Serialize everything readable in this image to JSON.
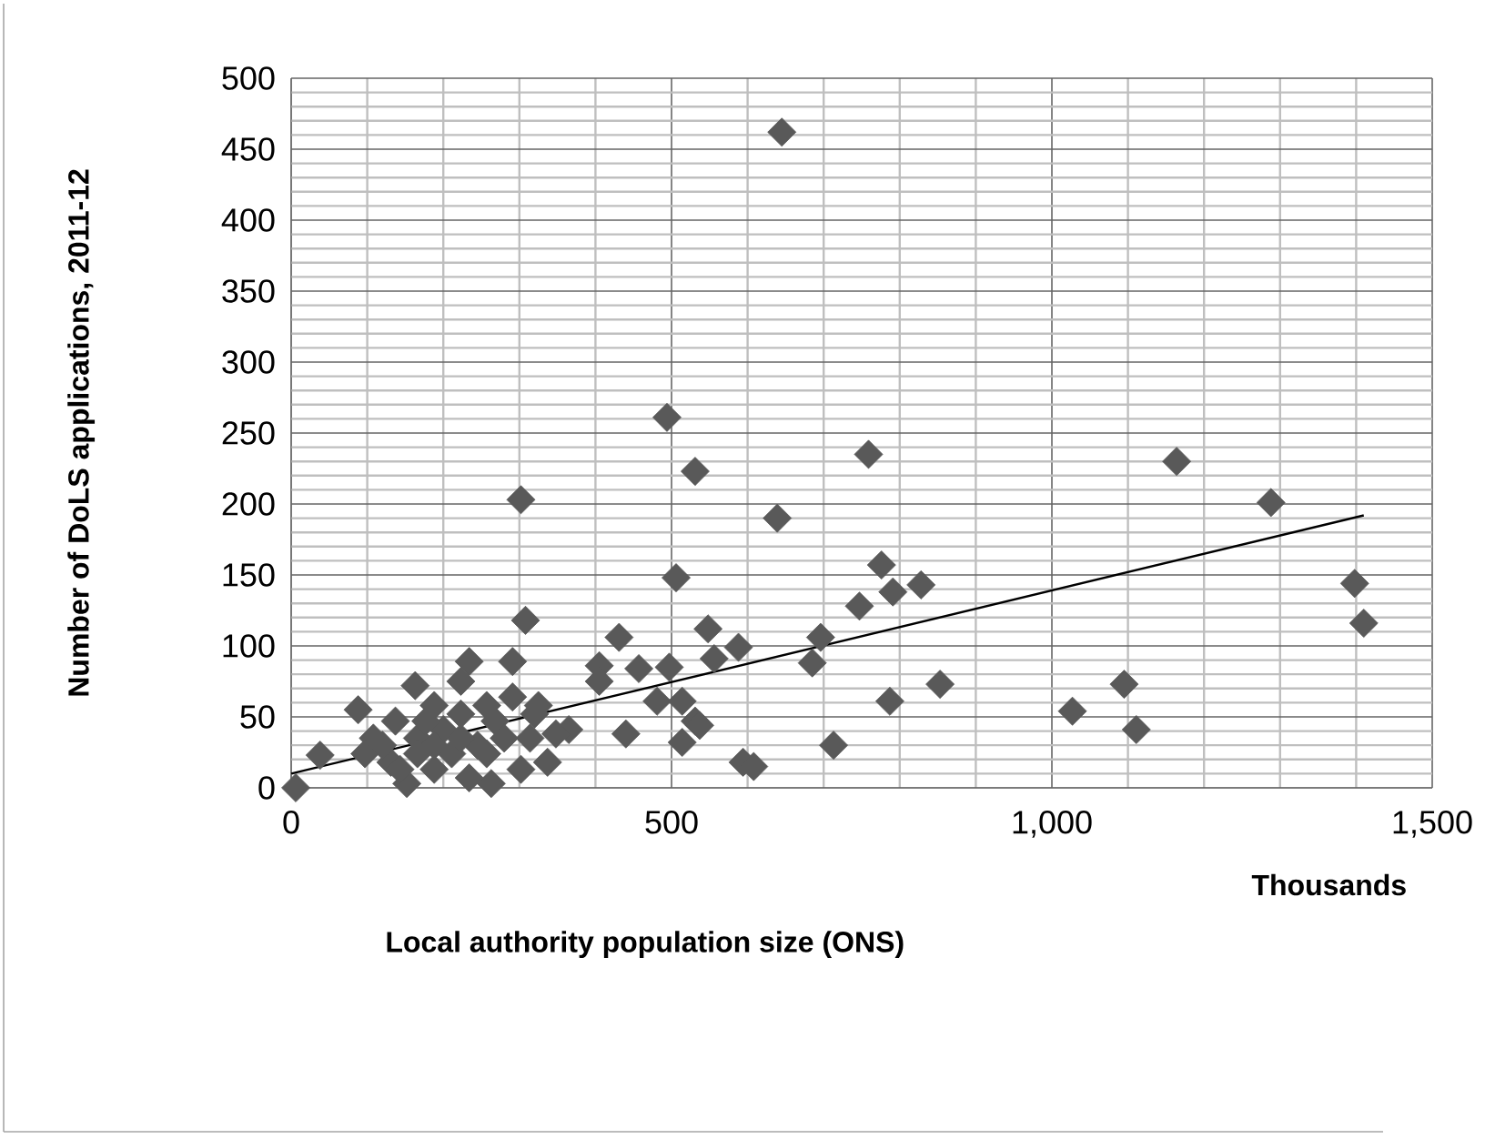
{
  "chart_data": {
    "type": "scatter",
    "xlabel": "Local authority population size (ONS)",
    "ylabel": "Number of DoLS applications, 2011-12",
    "annotations": [
      "Thousands"
    ],
    "xlim": [
      0,
      1500
    ],
    "ylim": [
      0,
      500
    ],
    "xticks": [
      0,
      500,
      {
        "value": 1000,
        "label": "1,000"
      },
      {
        "value": 1500,
        "label": "1,500"
      }
    ],
    "yticks": [
      0,
      50,
      100,
      150,
      200,
      250,
      300,
      350,
      400,
      450,
      500
    ],
    "grid": true,
    "marker": "diamond",
    "series": [
      {
        "color": "#595959",
        "x": [
          6,
          38,
          88,
          163,
          137,
          188,
          234,
          223,
          302,
          308,
          291,
          152,
          263,
          302,
          337,
          365,
          325,
          291,
          108,
          97,
          131,
          188,
          211,
          245,
          166,
          120,
          200,
          268,
          223,
          280,
          143,
          234,
          188,
          257,
          314,
          348,
          177,
          223,
          257,
          320,
          166,
          405,
          405,
          431,
          440,
          457,
          481,
          497,
          494,
          506,
          531,
          514,
          514,
          531,
          537,
          548,
          556,
          588,
          594,
          608,
          645,
          639,
          685,
          696,
          713,
          747,
          759,
          776,
          791,
          787,
          828,
          853,
          1027,
          1095,
          1111,
          1164,
          1288,
          1398,
          1410
        ],
        "values": [
          0,
          23,
          55,
          72,
          47,
          58,
          89,
          75,
          203,
          118,
          89,
          3,
          3,
          13,
          18,
          41,
          58,
          64,
          35,
          24,
          18,
          13,
          24,
          30,
          35,
          30,
          41,
          47,
          35,
          35,
          13,
          7,
          30,
          24,
          35,
          38,
          47,
          52,
          58,
          52,
          24,
          86,
          75,
          106,
          38,
          84,
          61,
          85,
          261,
          148,
          223,
          61,
          32,
          47,
          44,
          112,
          91,
          99,
          18,
          15,
          462,
          190,
          88,
          106,
          30,
          128,
          235,
          157,
          138,
          61,
          143,
          73,
          54,
          73,
          41,
          230,
          201,
          144,
          116
        ]
      },
      {
        "type": "line",
        "color": "#000000",
        "marker": "none",
        "x": [
          0,
          1410
        ],
        "values": [
          10,
          192
        ]
      }
    ]
  }
}
